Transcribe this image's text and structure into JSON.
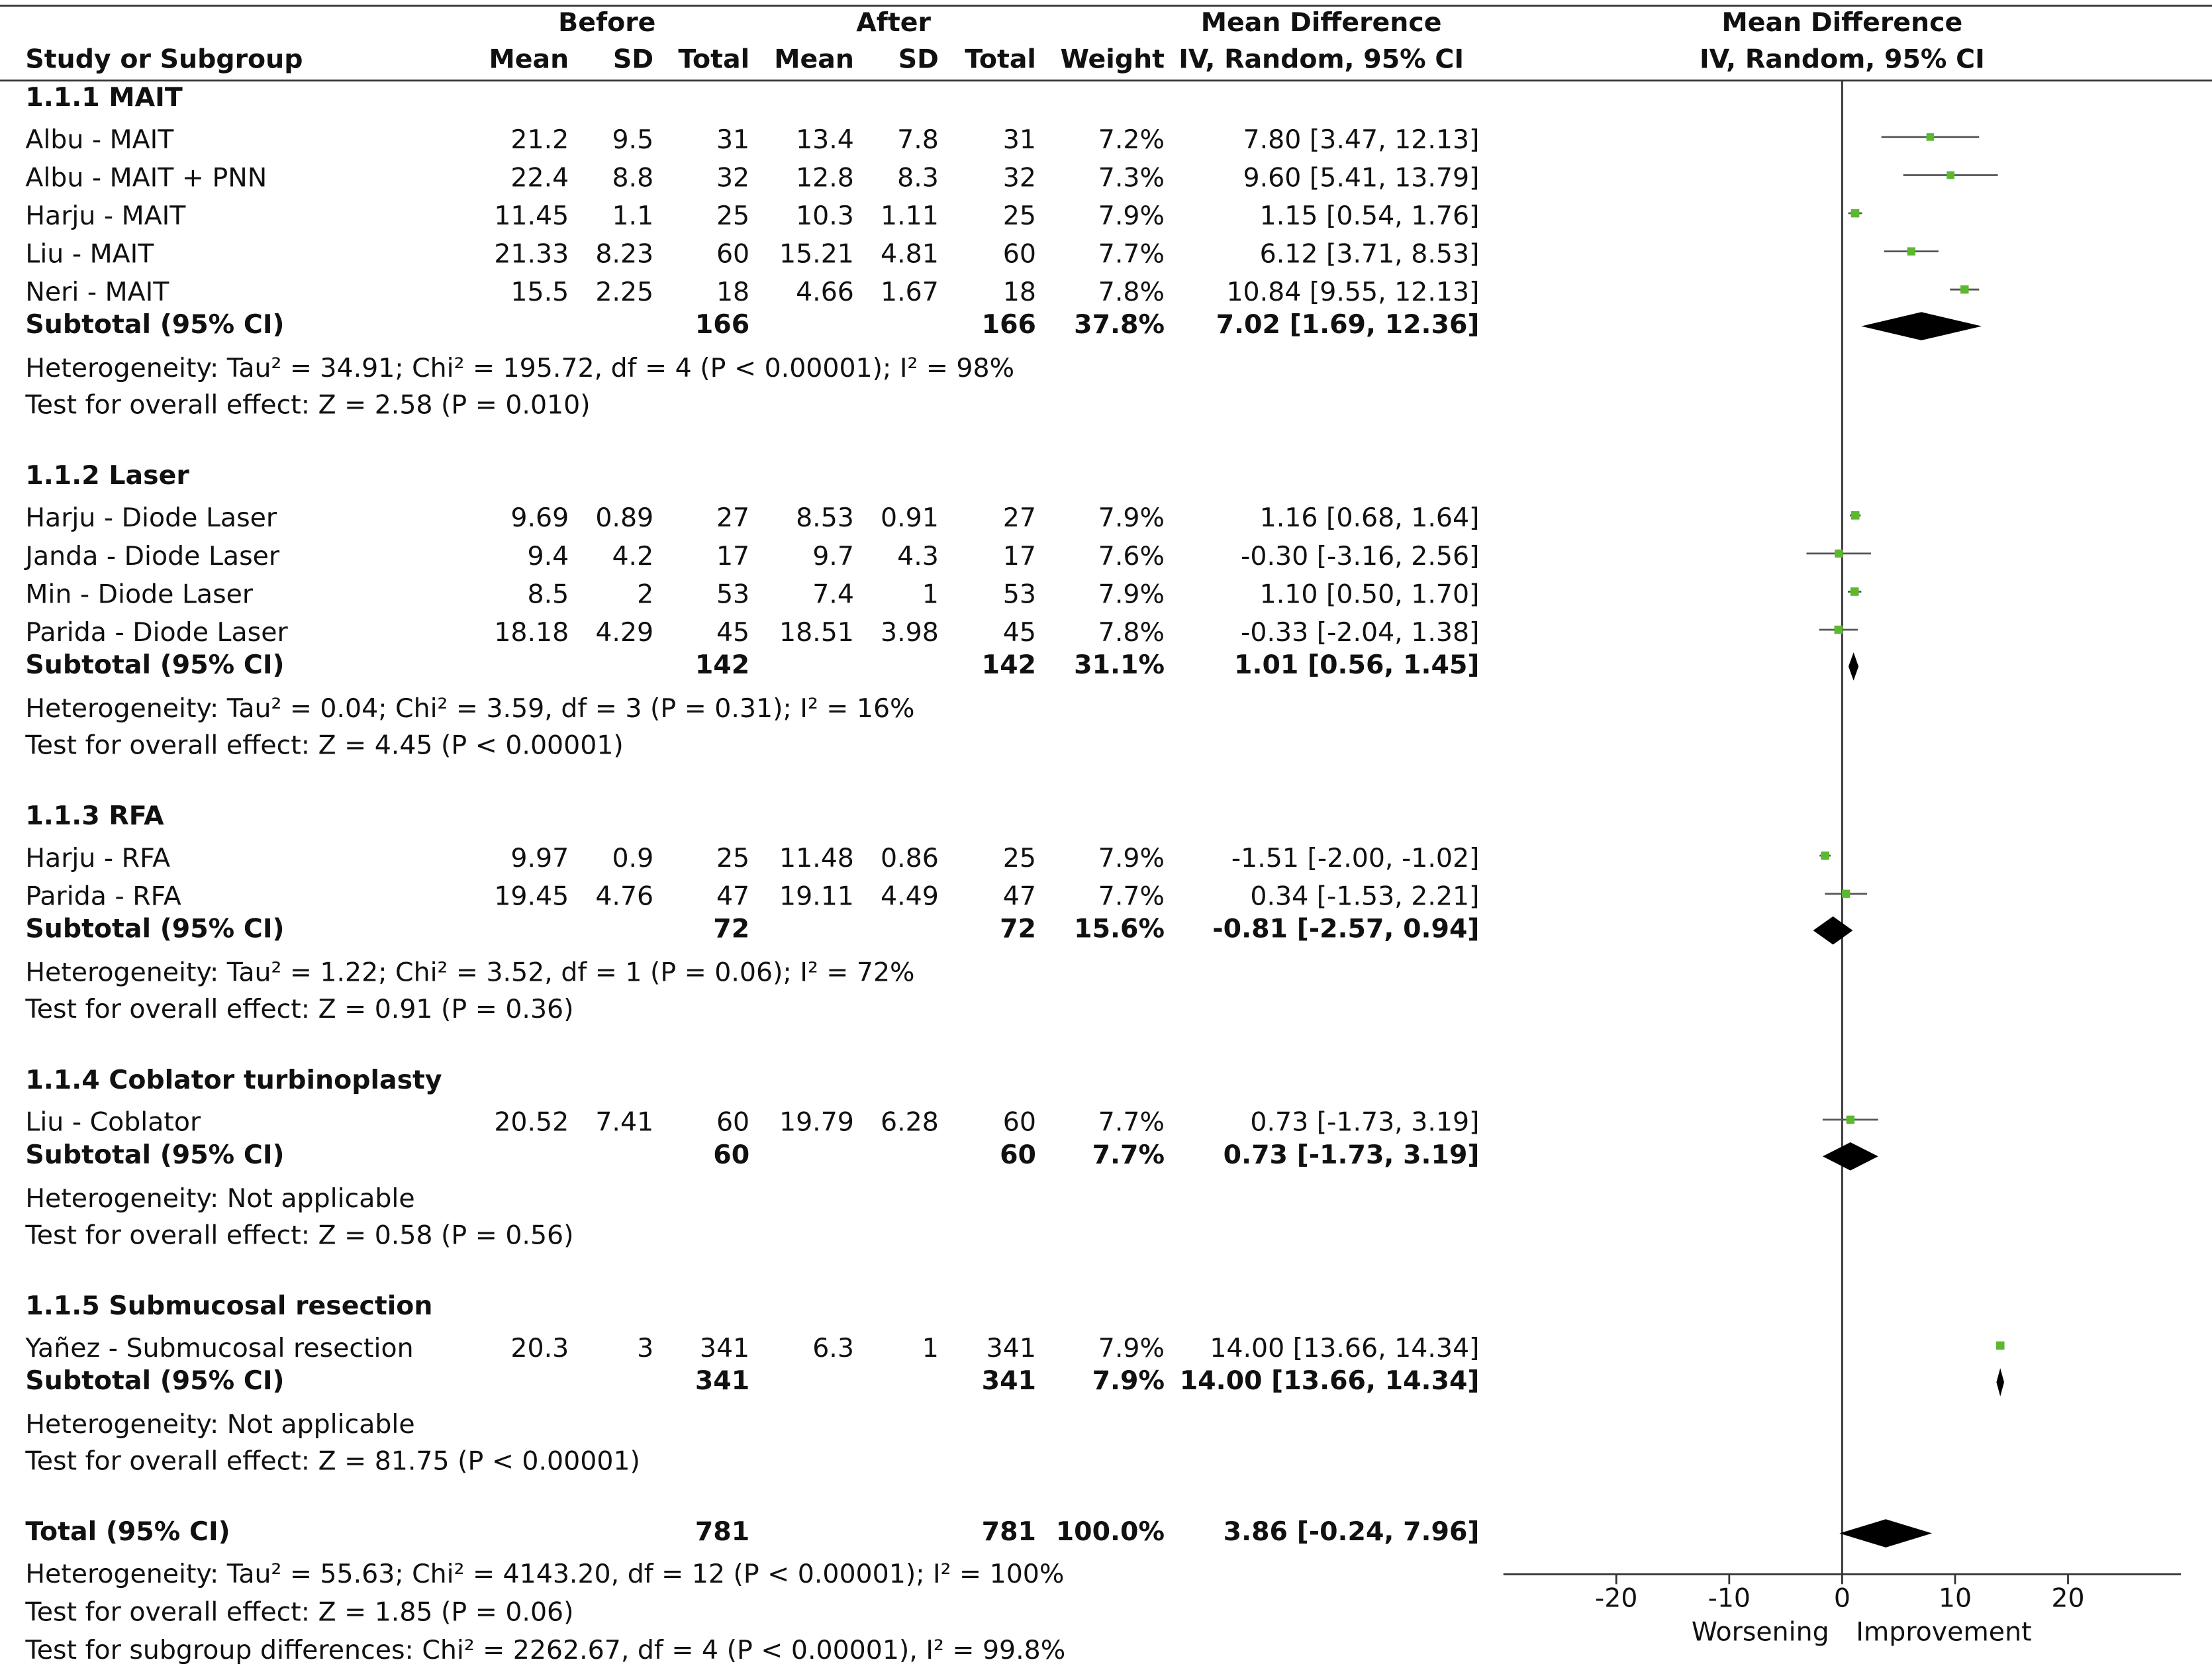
{
  "chart_data": {
    "type": "forest",
    "headers": {
      "top": [
        "Before",
        "After",
        "Mean Difference",
        "Mean Difference"
      ],
      "columns": [
        "Study or Subgroup",
        "Mean",
        "SD",
        "Total",
        "Mean",
        "SD",
        "Total",
        "Weight",
        "IV, Random, 95% CI",
        "IV, Random, 95% CI"
      ]
    },
    "groups": [
      {
        "name": "1.1.1 MAIT",
        "studies": [
          {
            "name": "Albu - MAIT",
            "before": [
              21.2,
              9.5,
              31
            ],
            "after": [
              13.4,
              7.8,
              31
            ],
            "weight": {
              "value": 7.2,
              "label": "7.2%"
            },
            "md": {
              "value": 7.8,
              "low": 3.47,
              "high": 12.13,
              "label": "7.80 [3.47, 12.13]"
            }
          },
          {
            "name": "Albu - MAIT + PNN",
            "before": [
              22.4,
              8.8,
              32
            ],
            "after": [
              12.8,
              8.3,
              32
            ],
            "weight": {
              "value": 7.3,
              "label": "7.3%"
            },
            "md": {
              "value": 9.6,
              "low": 5.41,
              "high": 13.79,
              "label": "9.60 [5.41, 13.79]"
            }
          },
          {
            "name": "Harju - MAIT",
            "before": [
              11.45,
              1.1,
              25
            ],
            "after": [
              10.3,
              1.11,
              25
            ],
            "weight": {
              "value": 7.9,
              "label": "7.9%"
            },
            "md": {
              "value": 1.15,
              "low": 0.54,
              "high": 1.76,
              "label": "1.15 [0.54, 1.76]"
            }
          },
          {
            "name": "Liu - MAIT",
            "before": [
              21.33,
              8.23,
              60
            ],
            "after": [
              15.21,
              4.81,
              60
            ],
            "weight": {
              "value": 7.7,
              "label": "7.7%"
            },
            "md": {
              "value": 6.12,
              "low": 3.71,
              "high": 8.53,
              "label": "6.12 [3.71, 8.53]"
            }
          },
          {
            "name": "Neri - MAIT",
            "before": [
              15.5,
              2.25,
              18
            ],
            "after": [
              4.66,
              1.67,
              18
            ],
            "weight": {
              "value": 7.8,
              "label": "7.8%"
            },
            "md": {
              "value": 10.84,
              "low": 9.55,
              "high": 12.13,
              "label": "10.84 [9.55, 12.13]"
            }
          }
        ],
        "subtotal": {
          "name": "Subtotal (95% CI)",
          "before_total": 166,
          "after_total": 166,
          "weight": {
            "value": 37.8,
            "label": "37.8%"
          },
          "md": {
            "value": 7.02,
            "low": 1.69,
            "high": 12.36,
            "label": "7.02 [1.69, 12.36]"
          }
        },
        "heterogeneity": "Heterogeneity: Tau² = 34.91; Chi² = 195.72, df = 4 (P < 0.00001); I² = 98%",
        "test": "Test for overall effect: Z = 2.58 (P = 0.010)"
      },
      {
        "name": "1.1.2 Laser",
        "studies": [
          {
            "name": "Harju - Diode Laser",
            "before": [
              9.69,
              0.89,
              27
            ],
            "after": [
              8.53,
              0.91,
              27
            ],
            "weight": {
              "value": 7.9,
              "label": "7.9%"
            },
            "md": {
              "value": 1.16,
              "low": 0.68,
              "high": 1.64,
              "label": "1.16 [0.68, 1.64]"
            }
          },
          {
            "name": "Janda - Diode Laser",
            "before": [
              9.4,
              4.2,
              17
            ],
            "after": [
              9.7,
              4.3,
              17
            ],
            "weight": {
              "value": 7.6,
              "label": "7.6%"
            },
            "md": {
              "value": -0.3,
              "low": -3.16,
              "high": 2.56,
              "label": "-0.30 [-3.16, 2.56]"
            }
          },
          {
            "name": "Min - Diode Laser",
            "before": [
              8.5,
              2,
              53
            ],
            "after": [
              7.4,
              1,
              53
            ],
            "weight": {
              "value": 7.9,
              "label": "7.9%"
            },
            "md": {
              "value": 1.1,
              "low": 0.5,
              "high": 1.7,
              "label": "1.10 [0.50, 1.70]"
            }
          },
          {
            "name": "Parida - Diode Laser",
            "before": [
              18.18,
              4.29,
              45
            ],
            "after": [
              18.51,
              3.98,
              45
            ],
            "weight": {
              "value": 7.8,
              "label": "7.8%"
            },
            "md": {
              "value": -0.33,
              "low": -2.04,
              "high": 1.38,
              "label": "-0.33 [-2.04, 1.38]"
            }
          }
        ],
        "subtotal": {
          "name": "Subtotal (95% CI)",
          "before_total": 142,
          "after_total": 142,
          "weight": {
            "value": 31.1,
            "label": "31.1%"
          },
          "md": {
            "value": 1.01,
            "low": 0.56,
            "high": 1.45,
            "label": "1.01 [0.56, 1.45]"
          }
        },
        "heterogeneity": "Heterogeneity: Tau² = 0.04; Chi² = 3.59, df = 3 (P = 0.31); I² = 16%",
        "test": "Test for overall effect: Z = 4.45 (P < 0.00001)"
      },
      {
        "name": "1.1.3 RFA",
        "studies": [
          {
            "name": "Harju - RFA",
            "before": [
              9.97,
              0.9,
              25
            ],
            "after": [
              11.48,
              0.86,
              25
            ],
            "weight": {
              "value": 7.9,
              "label": "7.9%"
            },
            "md": {
              "value": -1.51,
              "low": -2.0,
              "high": -1.02,
              "label": "-1.51 [-2.00, -1.02]"
            }
          },
          {
            "name": "Parida - RFA",
            "before": [
              19.45,
              4.76,
              47
            ],
            "after": [
              19.11,
              4.49,
              47
            ],
            "weight": {
              "value": 7.7,
              "label": "7.7%"
            },
            "md": {
              "value": 0.34,
              "low": -1.53,
              "high": 2.21,
              "label": "0.34 [-1.53, 2.21]"
            }
          }
        ],
        "subtotal": {
          "name": "Subtotal (95% CI)",
          "before_total": 72,
          "after_total": 72,
          "weight": {
            "value": 15.6,
            "label": "15.6%"
          },
          "md": {
            "value": -0.81,
            "low": -2.57,
            "high": 0.94,
            "label": "-0.81 [-2.57, 0.94]"
          }
        },
        "heterogeneity": "Heterogeneity: Tau² = 1.22; Chi² = 3.52, df = 1 (P = 0.06); I² = 72%",
        "test": "Test for overall effect: Z = 0.91 (P = 0.36)"
      },
      {
        "name": "1.1.4 Coblator turbinoplasty",
        "studies": [
          {
            "name": "Liu - Coblator",
            "before": [
              20.52,
              7.41,
              60
            ],
            "after": [
              19.79,
              6.28,
              60
            ],
            "weight": {
              "value": 7.7,
              "label": "7.7%"
            },
            "md": {
              "value": 0.73,
              "low": -1.73,
              "high": 3.19,
              "label": "0.73 [-1.73, 3.19]"
            }
          }
        ],
        "subtotal": {
          "name": "Subtotal (95% CI)",
          "before_total": 60,
          "after_total": 60,
          "weight": {
            "value": 7.7,
            "label": "7.7%"
          },
          "md": {
            "value": 0.73,
            "low": -1.73,
            "high": 3.19,
            "label": "0.73 [-1.73, 3.19]"
          }
        },
        "heterogeneity": "Heterogeneity: Not applicable",
        "test": "Test for overall effect: Z = 0.58 (P = 0.56)"
      },
      {
        "name": "1.1.5 Submucosal resection",
        "studies": [
          {
            "name": "Yañez - Submucosal resection",
            "before": [
              20.3,
              3,
              341
            ],
            "after": [
              6.3,
              1,
              341
            ],
            "weight": {
              "value": 7.9,
              "label": "7.9%"
            },
            "md": {
              "value": 14.0,
              "low": 13.66,
              "high": 14.34,
              "label": "14.00 [13.66, 14.34]"
            }
          }
        ],
        "subtotal": {
          "name": "Subtotal (95% CI)",
          "before_total": 341,
          "after_total": 341,
          "weight": {
            "value": 7.9,
            "label": "7.9%"
          },
          "md": {
            "value": 14.0,
            "low": 13.66,
            "high": 14.34,
            "label": "14.00 [13.66, 14.34]"
          }
        },
        "heterogeneity": "Heterogeneity: Not applicable",
        "test": "Test for overall effect: Z = 81.75 (P < 0.00001)"
      }
    ],
    "total": {
      "name": "Total (95% CI)",
      "before_total": 781,
      "after_total": 781,
      "weight": {
        "value": 100.0,
        "label": "100.0%"
      },
      "md": {
        "value": 3.86,
        "low": -0.24,
        "high": 7.96,
        "label": "3.86 [-0.24, 7.96]"
      },
      "heterogeneity": "Heterogeneity: Tau² = 55.63; Chi² = 4143.20, df = 12 (P < 0.00001); I² = 100%",
      "test": "Test for overall effect: Z = 1.85 (P = 0.06)",
      "subgroup_test": "Test for subgroup differences: Chi² = 2262.67, df = 4 (P < 0.00001), I² = 99.8%"
    },
    "xlim": [
      -30,
      30
    ],
    "xticks": [
      -20,
      -10,
      0,
      10,
      20
    ],
    "axis_labels": [
      "Worsening",
      "Improvement"
    ],
    "marker_color": "#5cb82e",
    "ci_color": "#555555",
    "diamond_color": "#000000"
  }
}
